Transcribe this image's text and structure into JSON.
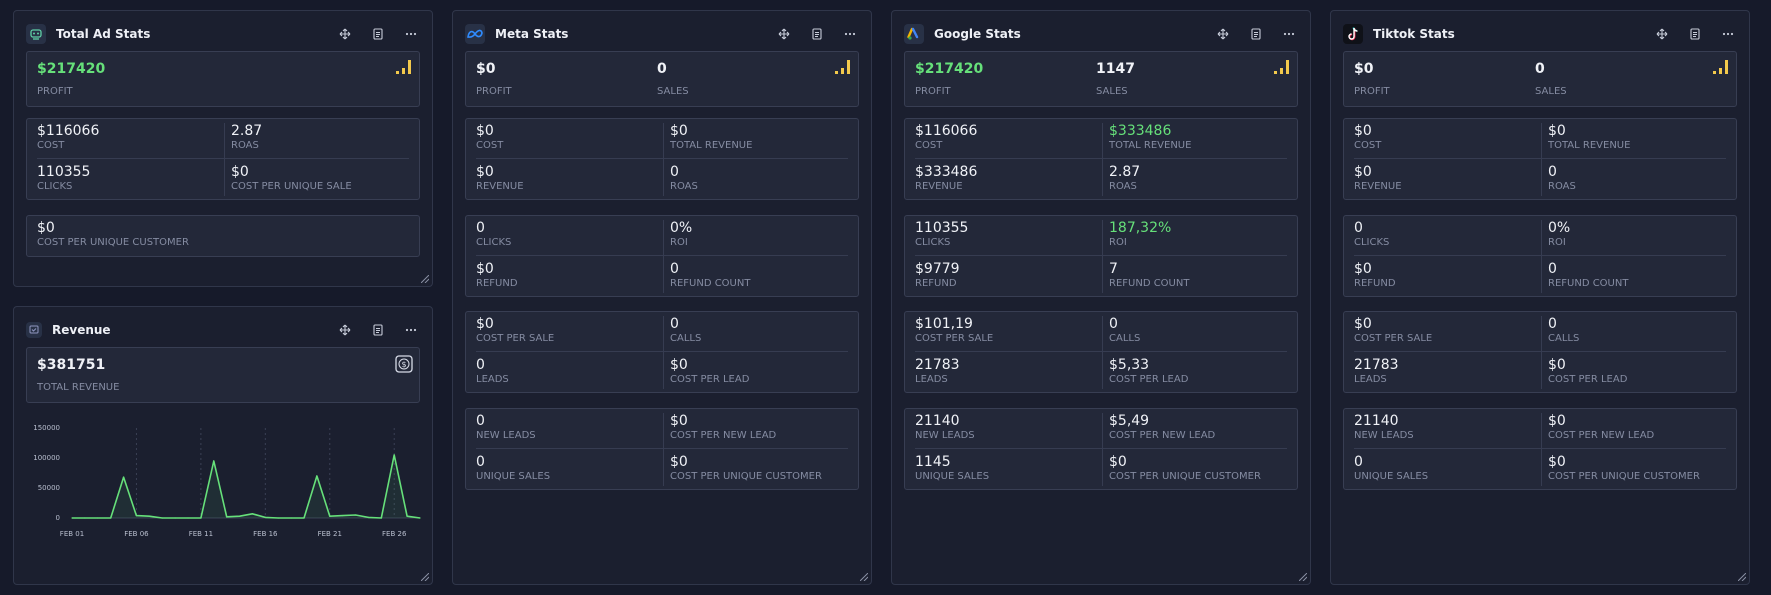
{
  "colors": {
    "accent_green": "#66e07a",
    "signal_yellow": "#f2c94c"
  },
  "total_ad_stats": {
    "title": "Total Ad Stats",
    "profit_value": "$217420",
    "profit_label": "PROFIT",
    "cost_value": "$116066",
    "cost_label": "COST",
    "roas_value": "2.87",
    "roas_label": "ROAS",
    "clicks_value": "110355",
    "clicks_label": "CLICKS",
    "cpus_value": "$0",
    "cpus_label": "COST PER UNIQUE SALE",
    "cpuc_value": "$0",
    "cpuc_label": "COST PER UNIQUE CUSTOMER"
  },
  "revenue": {
    "title": "Revenue",
    "total_value": "$381751",
    "total_label": "TOTAL REVENUE"
  },
  "meta": {
    "title": "Meta Stats",
    "profit_value": "$0",
    "profit_label": "PROFIT",
    "sales_value": "0",
    "sales_label": "SALES",
    "cost_value": "$0",
    "cost_label": "COST",
    "total_revenue_value": "$0",
    "total_revenue_label": "TOTAL REVENUE",
    "revenue_value": "$0",
    "revenue_label": "REVENUE",
    "roas_value": "0",
    "roas_label": "ROAS",
    "clicks_value": "0",
    "clicks_label": "CLICKS",
    "roi_value": "0%",
    "roi_label": "ROI",
    "refund_value": "$0",
    "refund_label": "REFUND",
    "refund_count_value": "0",
    "refund_count_label": "REFUND COUNT",
    "cps_value": "$0",
    "cps_label": "COST PER SALE",
    "calls_value": "0",
    "calls_label": "CALLS",
    "leads_value": "0",
    "leads_label": "LEADS",
    "cpl_value": "$0",
    "cpl_label": "COST PER LEAD",
    "new_leads_value": "0",
    "new_leads_label": "NEW LEADS",
    "cpnl_value": "$0",
    "cpnl_label": "COST PER NEW LEAD",
    "unique_sales_value": "0",
    "unique_sales_label": "UNIQUE SALES",
    "cpuc_value": "$0",
    "cpuc_label": "COST PER UNIQUE CUSTOMER"
  },
  "google": {
    "title": "Google Stats",
    "profit_value": "$217420",
    "profit_label": "PROFIT",
    "sales_value": "1147",
    "sales_label": "SALES",
    "cost_value": "$116066",
    "cost_label": "COST",
    "total_revenue_value": "$333486",
    "total_revenue_label": "TOTAL REVENUE",
    "revenue_value": "$333486",
    "revenue_label": "REVENUE",
    "roas_value": "2.87",
    "roas_label": "ROAS",
    "clicks_value": "110355",
    "clicks_label": "CLICKS",
    "roi_value": "187,32%",
    "roi_label": "ROI",
    "refund_value": "$9779",
    "refund_label": "REFUND",
    "refund_count_value": "7",
    "refund_count_label": "REFUND COUNT",
    "cps_value": "$101,19",
    "cps_label": "COST PER SALE",
    "calls_value": "0",
    "calls_label": "CALLS",
    "leads_value": "21783",
    "leads_label": "LEADS",
    "cpl_value": "$5,33",
    "cpl_label": "COST PER LEAD",
    "new_leads_value": "21140",
    "new_leads_label": "NEW LEADS",
    "cpnl_value": "$5,49",
    "cpnl_label": "COST PER NEW LEAD",
    "unique_sales_value": "1145",
    "unique_sales_label": "UNIQUE SALES",
    "cpuc_value": "$0",
    "cpuc_label": "COST PER UNIQUE CUSTOMER"
  },
  "tiktok": {
    "title": "Tiktok Stats",
    "profit_value": "$0",
    "profit_label": "PROFIT",
    "sales_value": "0",
    "sales_label": "SALES",
    "cost_value": "$0",
    "cost_label": "COST",
    "total_revenue_value": "$0",
    "total_revenue_label": "TOTAL REVENUE",
    "revenue_value": "$0",
    "revenue_label": "REVENUE",
    "roas_value": "0",
    "roas_label": "ROAS",
    "clicks_value": "0",
    "clicks_label": "CLICKS",
    "roi_value": "0%",
    "roi_label": "ROI",
    "refund_value": "$0",
    "refund_label": "REFUND",
    "refund_count_value": "0",
    "refund_count_label": "REFUND COUNT",
    "cps_value": "$0",
    "cps_label": "COST PER SALE",
    "calls_value": "0",
    "calls_label": "CALLS",
    "leads_value": "21783",
    "leads_label": "LEADS",
    "cpl_value": "$0",
    "cpl_label": "COST PER LEAD",
    "new_leads_value": "21140",
    "new_leads_label": "NEW LEADS",
    "cpnl_value": "$0",
    "cpnl_label": "COST PER NEW LEAD",
    "unique_sales_value": "0",
    "unique_sales_label": "UNIQUE SALES",
    "cpuc_value": "$0",
    "cpuc_label": "COST PER UNIQUE CUSTOMER"
  },
  "chart_data": {
    "type": "line",
    "title": "",
    "xlabel": "",
    "ylabel": "",
    "ylim": [
      0,
      150000
    ],
    "y_ticks": [
      0,
      50000,
      100000,
      150000
    ],
    "y_tick_labels": [
      "0",
      "50000",
      "100000",
      "150000"
    ],
    "x": [
      "FEB 01",
      "FEB 02",
      "FEB 03",
      "FEB 04",
      "FEB 05",
      "FEB 06",
      "FEB 07",
      "FEB 08",
      "FEB 09",
      "FEB 10",
      "FEB 11",
      "FEB 12",
      "FEB 13",
      "FEB 14",
      "FEB 15",
      "FEB 16",
      "FEB 17",
      "FEB 18",
      "FEB 19",
      "FEB 20",
      "FEB 21",
      "FEB 22",
      "FEB 23",
      "FEB 24",
      "FEB 25",
      "FEB 26",
      "FEB 27",
      "FEB 28"
    ],
    "x_tick_labels": [
      "FEB 01",
      "FEB 06",
      "FEB 11",
      "FEB 16",
      "FEB 21",
      "FEB 26"
    ],
    "series": [
      {
        "values": [
          0,
          0,
          0,
          0,
          68000,
          4000,
          3000,
          0,
          0,
          0,
          0,
          95000,
          2000,
          3000,
          7000,
          1000,
          0,
          0,
          0,
          70000,
          3000,
          4000,
          5000,
          1000,
          0,
          105000,
          3000,
          0
        ],
        "color": "#66e07a"
      }
    ],
    "grid": true,
    "legend": "none"
  }
}
